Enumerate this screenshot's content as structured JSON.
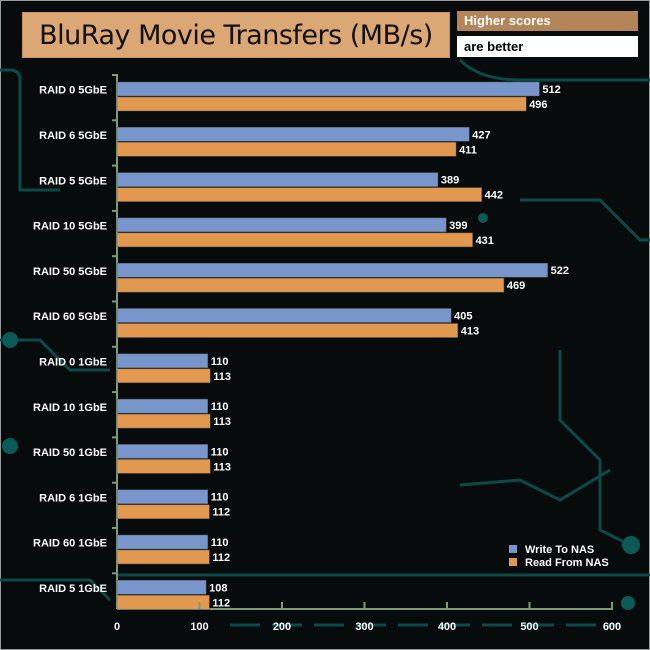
{
  "header": {
    "title": "BluRay Movie Transfers (MB/s)",
    "note_line1": "Higher scores",
    "note_line2": "are better"
  },
  "colors": {
    "write": "#7896cc",
    "read": "#e2994f",
    "background": "#070b0b",
    "circuit": "#0c4a48",
    "axis": "#7d9a7d"
  },
  "chart_data": {
    "type": "bar",
    "orientation": "horizontal",
    "title": "BluRay Movie Transfers (MB/s)",
    "categories": [
      "RAID 0 5GbE",
      "RAID 6 5GbE",
      "RAID 5 5GbE",
      "RAID 10 5GbE",
      "RAID 50 5GbE",
      "RAID 60 5GbE",
      "RAID 0 1GbE",
      "RAID 10 1GbE",
      "RAID 50 1GbE",
      "RAID 6 1GbE",
      "RAID 60 1GbE",
      "RAID 5 1GbE"
    ],
    "series": [
      {
        "name": "Write To NAS",
        "values": [
          512,
          427,
          389,
          399,
          522,
          405,
          110,
          110,
          110,
          110,
          110,
          108
        ]
      },
      {
        "name": "Read From NAS",
        "values": [
          496,
          411,
          442,
          431,
          469,
          413,
          113,
          113,
          113,
          112,
          112,
          112
        ]
      }
    ],
    "xlim": [
      0,
      600
    ],
    "xticks": [
      "0",
      "100",
      "200",
      "300",
      "400",
      "500",
      "600"
    ],
    "grid": false,
    "legend": "bottom-right",
    "data_labels": true
  }
}
